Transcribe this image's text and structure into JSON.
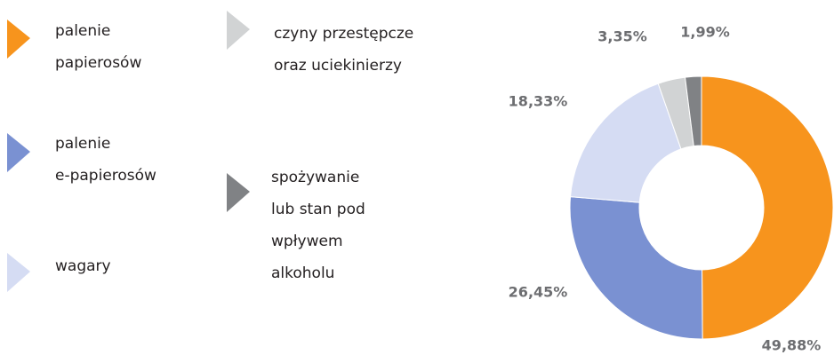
{
  "chart_data": {
    "type": "donut",
    "categories": [
      "palenie\npapierosów",
      "palenie\ne-papierosów",
      "wagary",
      "czyny przestępcze\noraz uciekinierzy",
      "spożywanie\nlub stan pod\nwpływem\nalkoholu"
    ],
    "values": [
      49.88,
      26.45,
      18.33,
      3.35,
      1.99
    ],
    "value_labels": [
      "49,88%",
      "26,45%",
      "18,33%",
      "3,35%",
      "1,99%"
    ],
    "colors": [
      "#f7941d",
      "#7a91d2",
      "#d5dcf3",
      "#d1d3d4",
      "#808285"
    ]
  }
}
